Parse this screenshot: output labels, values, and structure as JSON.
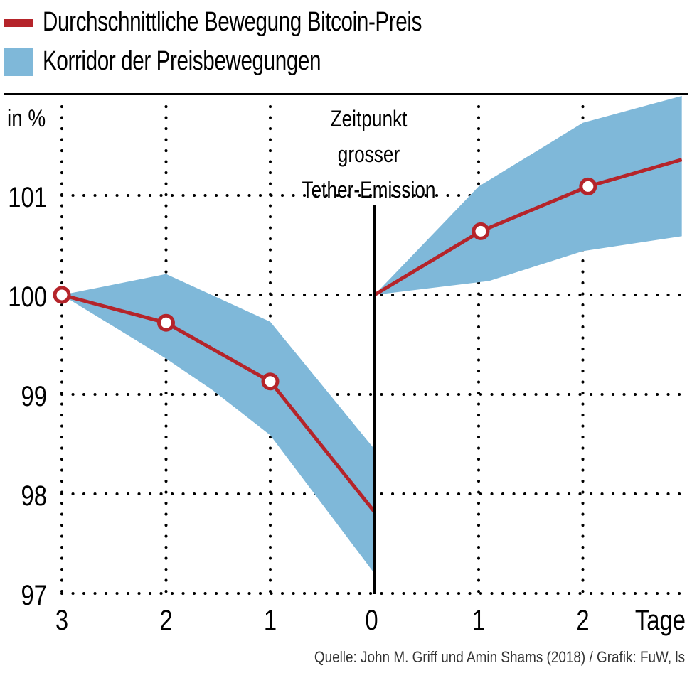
{
  "legend": {
    "items": [
      {
        "label": "Durchschnittliche Bewegung Bitcoin-Preis",
        "kind": "line",
        "color": "#b5242a"
      },
      {
        "label": "Korridor der Preisbewegungen",
        "kind": "area",
        "color": "#7fb8d9"
      }
    ]
  },
  "source": "Quelle: John M. Griff und Amin Shams (2018) / Grafik: FuW, ls",
  "chart_data": {
    "type": "line",
    "title": "",
    "xlabel": "Tage",
    "ylabel": "in %",
    "xlim": [
      -3,
      2.95
    ],
    "ylim": [
      97,
      102
    ],
    "grid": true,
    "grid_style": "dotted",
    "legend_position": "top-left",
    "x_ticks": [
      {
        "value": -3,
        "label": "3"
      },
      {
        "value": -2,
        "label": "2"
      },
      {
        "value": -1,
        "label": "1"
      },
      {
        "value": 0,
        "label": "0"
      },
      {
        "value": 1,
        "label": "1"
      },
      {
        "value": 2,
        "label": "2"
      }
    ],
    "y_ticks": [
      {
        "value": 97,
        "label": "97"
      },
      {
        "value": 98,
        "label": "98"
      },
      {
        "value": 99,
        "label": "99"
      },
      {
        "value": 100,
        "label": "100"
      },
      {
        "value": 101,
        "label": "101"
      }
    ],
    "annotation": {
      "x": 0,
      "lines": [
        "Zeitpunkt",
        "grosser",
        "Tether-Emission"
      ]
    },
    "series": [
      {
        "name": "Durchschnittliche Bewegung Bitcoin-Preis",
        "color": "#b5242a",
        "segments": [
          {
            "points": [
              [
                -3,
                100.0
              ],
              [
                -2,
                99.72
              ],
              [
                -1,
                99.13
              ],
              [
                0,
                97.82
              ]
            ],
            "markers": [
              true,
              true,
              true,
              false
            ]
          },
          {
            "points": [
              [
                0,
                100.0
              ],
              [
                1.02,
                100.64
              ],
              [
                2.05,
                101.09
              ],
              [
                2.95,
                101.36
              ]
            ],
            "markers": [
              false,
              true,
              true,
              false
            ]
          }
        ]
      }
    ],
    "bands": [
      {
        "name": "Korridor der Preisbewegungen",
        "color": "#7fb8d9",
        "segments": [
          {
            "upper": [
              [
                -3,
                100.0
              ],
              [
                -2,
                100.21
              ],
              [
                -1,
                99.73
              ],
              [
                0,
                98.45
              ]
            ],
            "lower": [
              [
                -3,
                100.0
              ],
              [
                -2.5,
                99.68
              ],
              [
                -2,
                99.36
              ],
              [
                -1.55,
                99.04
              ],
              [
                -1,
                98.59
              ],
              [
                0,
                97.2
              ]
            ]
          },
          {
            "upper": [
              [
                0,
                100.0
              ],
              [
                1,
                101.09
              ],
              [
                2,
                101.73
              ],
              [
                2.95,
                102.0
              ]
            ],
            "lower": [
              [
                0,
                100.0
              ],
              [
                1.1,
                100.14
              ],
              [
                2,
                100.44
              ],
              [
                2.95,
                100.59
              ]
            ]
          }
        ]
      }
    ]
  }
}
